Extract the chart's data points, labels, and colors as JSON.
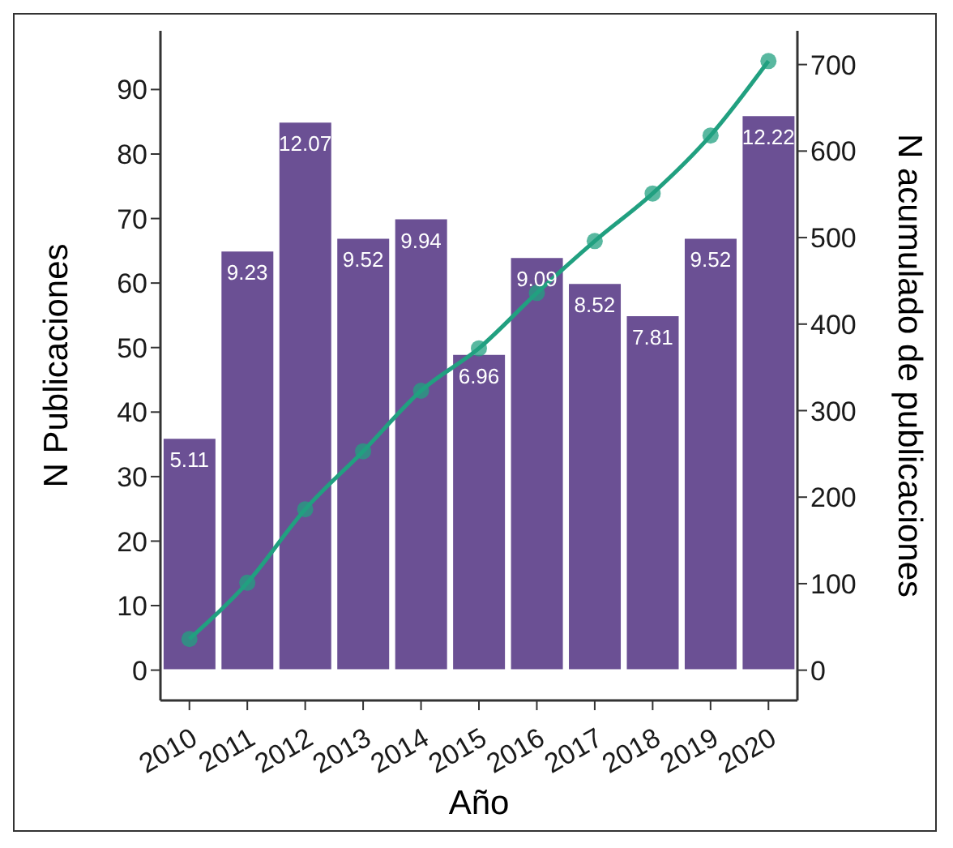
{
  "chart_data": {
    "type": "bar",
    "xlabel": "Año",
    "ylabel": "N Publicaciones",
    "y2label": "N acumulado de publicaciones",
    "categories": [
      "2010",
      "2011",
      "2012",
      "2013",
      "2014",
      "2015",
      "2016",
      "2017",
      "2018",
      "2019",
      "2020"
    ],
    "series": [
      {
        "color": "#6b5094",
        "values": [
          36,
          65,
          85,
          67,
          70,
          49,
          64,
          60,
          55,
          67,
          86
        ]
      },
      {
        "type": "line",
        "axis": "y2",
        "color": "#21a080",
        "marker": "circle",
        "values": [
          36,
          101,
          186,
          253,
          323,
          372,
          436,
          496,
          551,
          618,
          704
        ]
      }
    ],
    "annotations": [
      {
        "text": "5.11",
        "x": "2010",
        "y": 36
      },
      {
        "text": "9.23",
        "x": "2011",
        "y": 65
      },
      {
        "text": "12.07",
        "x": "2012",
        "y": 85
      },
      {
        "text": "9.52",
        "x": "2013",
        "y": 67
      },
      {
        "text": "9.94",
        "x": "2014",
        "y": 70
      },
      {
        "text": "6.96",
        "x": "2015",
        "y": 49
      },
      {
        "text": "9.09",
        "x": "2016",
        "y": 64
      },
      {
        "text": "8.52",
        "x": "2017",
        "y": 60
      },
      {
        "text": "7.81",
        "x": "2018",
        "y": 55
      },
      {
        "text": "9.52",
        "x": "2019",
        "y": 67
      },
      {
        "text": "12.22",
        "x": "2020",
        "y": 86
      }
    ],
    "ylim": [
      -4.7,
      99.1
    ],
    "yticks": [
      0,
      10,
      20,
      30,
      40,
      50,
      60,
      70,
      80,
      90
    ],
    "y2lim": [
      -35,
      739
    ],
    "y2ticks": [
      0,
      100,
      200,
      300,
      400,
      500,
      600,
      700
    ],
    "grid": false,
    "legend": false
  }
}
